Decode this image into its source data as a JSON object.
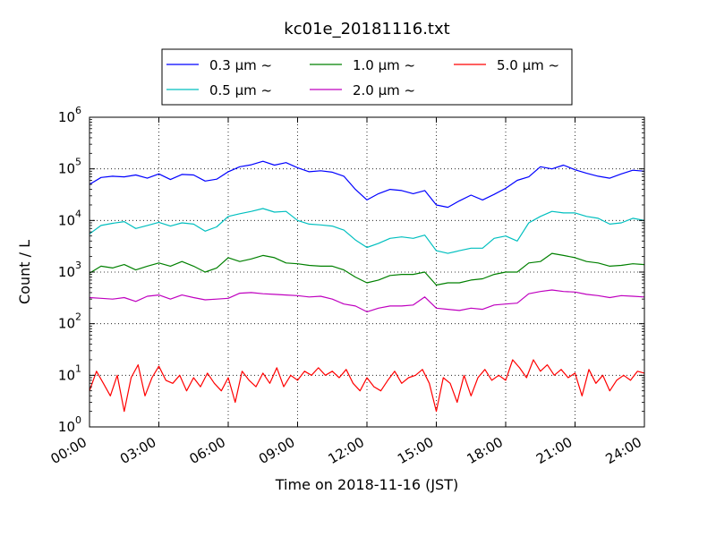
{
  "chart_data": {
    "type": "line",
    "title": "kc01e_20181116.txt",
    "xlabel": "Time on 2018-11-16 (JST)",
    "ylabel": "Count / L",
    "x_ticks": [
      "00:00",
      "03:00",
      "06:00",
      "09:00",
      "12:00",
      "15:00",
      "18:00",
      "21:00",
      "24:00"
    ],
    "x_range_hours": [
      0,
      24
    ],
    "y_scale": "log",
    "ylim": [
      1,
      1000000
    ],
    "y_ticks": [
      {
        "base": "10",
        "exp": "0"
      },
      {
        "base": "10",
        "exp": "1"
      },
      {
        "base": "10",
        "exp": "2"
      },
      {
        "base": "10",
        "exp": "3"
      },
      {
        "base": "10",
        "exp": "4"
      },
      {
        "base": "10",
        "exp": "5"
      },
      {
        "base": "10",
        "exp": "6"
      }
    ],
    "grid": "dotted",
    "legend_position": "top-center",
    "series": [
      {
        "name": "0.3 μm ~",
        "color": "#0000ff",
        "points": [
          [
            0,
            50000
          ],
          [
            0.5,
            68000
          ],
          [
            1,
            72000
          ],
          [
            1.5,
            70000
          ],
          [
            2,
            76000
          ],
          [
            2.5,
            66000
          ],
          [
            3,
            80000
          ],
          [
            3.5,
            62000
          ],
          [
            4,
            78000
          ],
          [
            4.5,
            76000
          ],
          [
            5,
            58000
          ],
          [
            5.5,
            63000
          ],
          [
            6,
            88000
          ],
          [
            6.5,
            110000
          ],
          [
            7,
            120000
          ],
          [
            7.5,
            140000
          ],
          [
            8,
            118000
          ],
          [
            8.5,
            132000
          ],
          [
            9,
            105000
          ],
          [
            9.5,
            88000
          ],
          [
            10,
            92000
          ],
          [
            10.5,
            86000
          ],
          [
            11,
            72000
          ],
          [
            11.5,
            40000
          ],
          [
            12,
            25000
          ],
          [
            12.5,
            33000
          ],
          [
            13,
            40000
          ],
          [
            13.5,
            38000
          ],
          [
            14,
            33000
          ],
          [
            14.5,
            38000
          ],
          [
            15,
            20000
          ],
          [
            15.5,
            18000
          ],
          [
            16,
            24000
          ],
          [
            16.5,
            31000
          ],
          [
            17,
            25000
          ],
          [
            17.5,
            32000
          ],
          [
            18,
            42000
          ],
          [
            18.5,
            60000
          ],
          [
            19,
            70000
          ],
          [
            19.5,
            110000
          ],
          [
            20,
            100000
          ],
          [
            20.5,
            118000
          ],
          [
            21,
            96000
          ],
          [
            21.5,
            82000
          ],
          [
            22,
            72000
          ],
          [
            22.5,
            66000
          ],
          [
            23,
            80000
          ],
          [
            23.5,
            94000
          ],
          [
            24,
            90000
          ]
        ]
      },
      {
        "name": "0.5 μm ~",
        "color": "#00bfbf",
        "points": [
          [
            0,
            5500
          ],
          [
            0.5,
            8000
          ],
          [
            1,
            8800
          ],
          [
            1.5,
            9500
          ],
          [
            2,
            7000
          ],
          [
            2.5,
            8000
          ],
          [
            3,
            9200
          ],
          [
            3.5,
            7800
          ],
          [
            4,
            9000
          ],
          [
            4.5,
            8500
          ],
          [
            5,
            6200
          ],
          [
            5.5,
            7500
          ],
          [
            6,
            12000
          ],
          [
            6.5,
            13500
          ],
          [
            7,
            15000
          ],
          [
            7.5,
            17000
          ],
          [
            8,
            14500
          ],
          [
            8.5,
            15000
          ],
          [
            9,
            10000
          ],
          [
            9.5,
            8500
          ],
          [
            10,
            8200
          ],
          [
            10.5,
            7800
          ],
          [
            11,
            6500
          ],
          [
            11.5,
            4200
          ],
          [
            12,
            3000
          ],
          [
            12.5,
            3600
          ],
          [
            13,
            4500
          ],
          [
            13.5,
            4800
          ],
          [
            14,
            4500
          ],
          [
            14.5,
            5200
          ],
          [
            15,
            2600
          ],
          [
            15.5,
            2300
          ],
          [
            16,
            2600
          ],
          [
            16.5,
            2900
          ],
          [
            17,
            2900
          ],
          [
            17.5,
            4500
          ],
          [
            18,
            5000
          ],
          [
            18.5,
            4000
          ],
          [
            19,
            9000
          ],
          [
            19.5,
            12000
          ],
          [
            20,
            15000
          ],
          [
            20.5,
            14000
          ],
          [
            21,
            14000
          ],
          [
            21.5,
            12000
          ],
          [
            22,
            11000
          ],
          [
            22.5,
            8500
          ],
          [
            23,
            9000
          ],
          [
            23.5,
            11000
          ],
          [
            24,
            10000
          ]
        ]
      },
      {
        "name": "1.0 μm ~",
        "color": "#008000",
        "points": [
          [
            0,
            950
          ],
          [
            0.5,
            1300
          ],
          [
            1,
            1200
          ],
          [
            1.5,
            1400
          ],
          [
            2,
            1100
          ],
          [
            2.5,
            1300
          ],
          [
            3,
            1500
          ],
          [
            3.5,
            1300
          ],
          [
            4,
            1600
          ],
          [
            4.5,
            1300
          ],
          [
            5,
            1000
          ],
          [
            5.5,
            1200
          ],
          [
            6,
            1900
          ],
          [
            6.5,
            1600
          ],
          [
            7,
            1800
          ],
          [
            7.5,
            2100
          ],
          [
            8,
            1900
          ],
          [
            8.5,
            1500
          ],
          [
            9,
            1450
          ],
          [
            9.5,
            1350
          ],
          [
            10,
            1300
          ],
          [
            10.5,
            1300
          ],
          [
            11,
            1100
          ],
          [
            11.5,
            800
          ],
          [
            12,
            620
          ],
          [
            12.5,
            700
          ],
          [
            13,
            860
          ],
          [
            13.5,
            900
          ],
          [
            14,
            900
          ],
          [
            14.5,
            1000
          ],
          [
            15,
            560
          ],
          [
            15.5,
            620
          ],
          [
            16,
            620
          ],
          [
            16.5,
            700
          ],
          [
            17,
            740
          ],
          [
            17.5,
            900
          ],
          [
            18,
            1000
          ],
          [
            18.5,
            1000
          ],
          [
            19,
            1500
          ],
          [
            19.5,
            1600
          ],
          [
            20,
            2300
          ],
          [
            20.5,
            2100
          ],
          [
            21,
            1900
          ],
          [
            21.5,
            1600
          ],
          [
            22,
            1500
          ],
          [
            22.5,
            1300
          ],
          [
            23,
            1350
          ],
          [
            23.5,
            1450
          ],
          [
            24,
            1400
          ]
        ]
      },
      {
        "name": "2.0 μm ~",
        "color": "#bf00bf",
        "points": [
          [
            0,
            320
          ],
          [
            0.5,
            310
          ],
          [
            1,
            300
          ],
          [
            1.5,
            320
          ],
          [
            2,
            270
          ],
          [
            2.5,
            340
          ],
          [
            3,
            360
          ],
          [
            3.5,
            300
          ],
          [
            4,
            360
          ],
          [
            4.5,
            320
          ],
          [
            5,
            290
          ],
          [
            5.5,
            300
          ],
          [
            6,
            310
          ],
          [
            6.5,
            390
          ],
          [
            7,
            400
          ],
          [
            7.5,
            380
          ],
          [
            8,
            370
          ],
          [
            8.5,
            360
          ],
          [
            9,
            350
          ],
          [
            9.5,
            330
          ],
          [
            10,
            340
          ],
          [
            10.5,
            300
          ],
          [
            11,
            240
          ],
          [
            11.5,
            220
          ],
          [
            12,
            170
          ],
          [
            12.5,
            200
          ],
          [
            13,
            220
          ],
          [
            13.5,
            220
          ],
          [
            14,
            230
          ],
          [
            14.5,
            330
          ],
          [
            15,
            200
          ],
          [
            15.5,
            190
          ],
          [
            16,
            180
          ],
          [
            16.5,
            200
          ],
          [
            17,
            190
          ],
          [
            17.5,
            230
          ],
          [
            18,
            240
          ],
          [
            18.5,
            250
          ],
          [
            19,
            380
          ],
          [
            19.5,
            420
          ],
          [
            20,
            450
          ],
          [
            20.5,
            420
          ],
          [
            21,
            410
          ],
          [
            21.5,
            370
          ],
          [
            22,
            350
          ],
          [
            22.5,
            320
          ],
          [
            23,
            350
          ],
          [
            23.5,
            340
          ],
          [
            24,
            330
          ]
        ]
      },
      {
        "name": "5.0 μm ~",
        "color": "#ff0000",
        "points": [
          [
            0,
            5
          ],
          [
            0.3,
            12
          ],
          [
            0.6,
            7
          ],
          [
            0.9,
            4
          ],
          [
            1.2,
            10
          ],
          [
            1.5,
            2
          ],
          [
            1.8,
            9
          ],
          [
            2.1,
            16
          ],
          [
            2.4,
            4
          ],
          [
            2.7,
            9
          ],
          [
            3,
            15
          ],
          [
            3.3,
            8
          ],
          [
            3.6,
            7
          ],
          [
            3.9,
            10
          ],
          [
            4.2,
            5
          ],
          [
            4.5,
            9
          ],
          [
            4.8,
            6
          ],
          [
            5.1,
            11
          ],
          [
            5.4,
            7
          ],
          [
            5.7,
            5
          ],
          [
            6,
            9
          ],
          [
            6.3,
            3
          ],
          [
            6.6,
            12
          ],
          [
            6.9,
            8
          ],
          [
            7.2,
            6
          ],
          [
            7.5,
            11
          ],
          [
            7.8,
            7
          ],
          [
            8.1,
            14
          ],
          [
            8.4,
            6
          ],
          [
            8.7,
            10
          ],
          [
            9,
            8
          ],
          [
            9.3,
            12
          ],
          [
            9.6,
            10
          ],
          [
            9.9,
            14
          ],
          [
            10.2,
            10
          ],
          [
            10.5,
            12
          ],
          [
            10.8,
            9
          ],
          [
            11.1,
            13
          ],
          [
            11.4,
            7
          ],
          [
            11.7,
            5
          ],
          [
            12,
            9
          ],
          [
            12.3,
            6
          ],
          [
            12.6,
            5
          ],
          [
            12.9,
            8
          ],
          [
            13.2,
            12
          ],
          [
            13.5,
            7
          ],
          [
            13.8,
            9
          ],
          [
            14.1,
            10
          ],
          [
            14.4,
            13
          ],
          [
            14.7,
            7
          ],
          [
            15,
            2
          ],
          [
            15.3,
            9
          ],
          [
            15.6,
            7
          ],
          [
            15.9,
            3
          ],
          [
            16.2,
            10
          ],
          [
            16.5,
            4
          ],
          [
            16.8,
            9
          ],
          [
            17.1,
            13
          ],
          [
            17.4,
            8
          ],
          [
            17.7,
            10
          ],
          [
            18,
            8
          ],
          [
            18.3,
            20
          ],
          [
            18.6,
            14
          ],
          [
            18.9,
            9
          ],
          [
            19.2,
            20
          ],
          [
            19.5,
            12
          ],
          [
            19.8,
            16
          ],
          [
            20.1,
            10
          ],
          [
            20.4,
            13
          ],
          [
            20.7,
            9
          ],
          [
            21,
            11
          ],
          [
            21.3,
            4
          ],
          [
            21.6,
            13
          ],
          [
            21.9,
            7
          ],
          [
            22.2,
            10
          ],
          [
            22.5,
            5
          ],
          [
            22.8,
            8
          ],
          [
            23.1,
            10
          ],
          [
            23.4,
            8
          ],
          [
            23.7,
            12
          ],
          [
            24,
            11
          ]
        ]
      }
    ]
  }
}
